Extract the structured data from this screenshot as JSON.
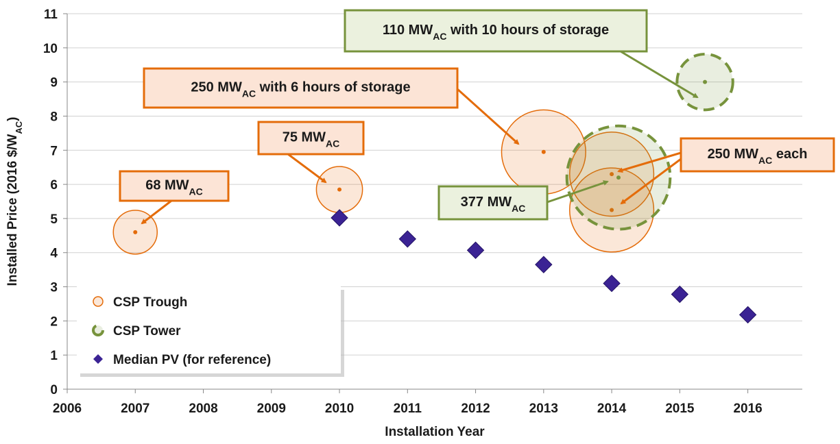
{
  "chart_data": {
    "type": "bubble",
    "x_label": "Installation Year",
    "y_label": {
      "pre": "Installed Price (2016 $/W",
      "sub": "AC",
      "post": ")"
    },
    "xlim": [
      2006,
      2016.8
    ],
    "xticks": [
      2006,
      2007,
      2008,
      2009,
      2010,
      2011,
      2012,
      2013,
      2014,
      2015,
      2016
    ],
    "ylim": [
      0,
      11
    ],
    "yticks": [
      0,
      1,
      2,
      3,
      4,
      5,
      6,
      7,
      8,
      9,
      10,
      11
    ],
    "grid": true,
    "legend": "lower left",
    "series": [
      {
        "name": "CSP Trough",
        "color": "#E46C0A",
        "marker": "circle",
        "dashed": false,
        "x": [
          2007,
          2010,
          2013,
          2014,
          2014
        ],
        "values": [
          4.6,
          5.85,
          6.95,
          6.3,
          5.25
        ],
        "sizes": [
          68,
          75,
          250,
          250,
          250
        ]
      },
      {
        "name": "CSP Tower",
        "color": "#77933C",
        "marker": "circle",
        "dashed": true,
        "x": [
          2015.37,
          2014.1
        ],
        "values": [
          9.0,
          6.2
        ],
        "sizes": [
          110,
          377
        ]
      },
      {
        "name": "Median PV (for reference)",
        "color": "#3B2394",
        "marker": "diamond",
        "x": [
          2010,
          2011,
          2012,
          2013,
          2014,
          2015,
          2016
        ],
        "values": [
          5.02,
          4.4,
          4.07,
          3.65,
          3.1,
          2.78,
          2.18
        ]
      }
    ],
    "annotations": [
      {
        "pre": "68 MW",
        "sub": "AC",
        "color": "#E46C0A"
      },
      {
        "pre": "75 MW",
        "sub": "AC",
        "color": "#E46C0A"
      },
      {
        "pre": "250 MW",
        "sub": "AC",
        "post": " with 6 hours of storage",
        "color": "#E46C0A"
      },
      {
        "pre": "110 MW",
        "sub": "AC",
        "post": " with 10 hours of storage",
        "color": "#77933C"
      },
      {
        "pre": "377 MW",
        "sub": "AC",
        "color": "#77933C"
      },
      {
        "pre": "250 MW",
        "sub": "AC",
        "post": " each",
        "color": "#E46C0A"
      }
    ]
  }
}
